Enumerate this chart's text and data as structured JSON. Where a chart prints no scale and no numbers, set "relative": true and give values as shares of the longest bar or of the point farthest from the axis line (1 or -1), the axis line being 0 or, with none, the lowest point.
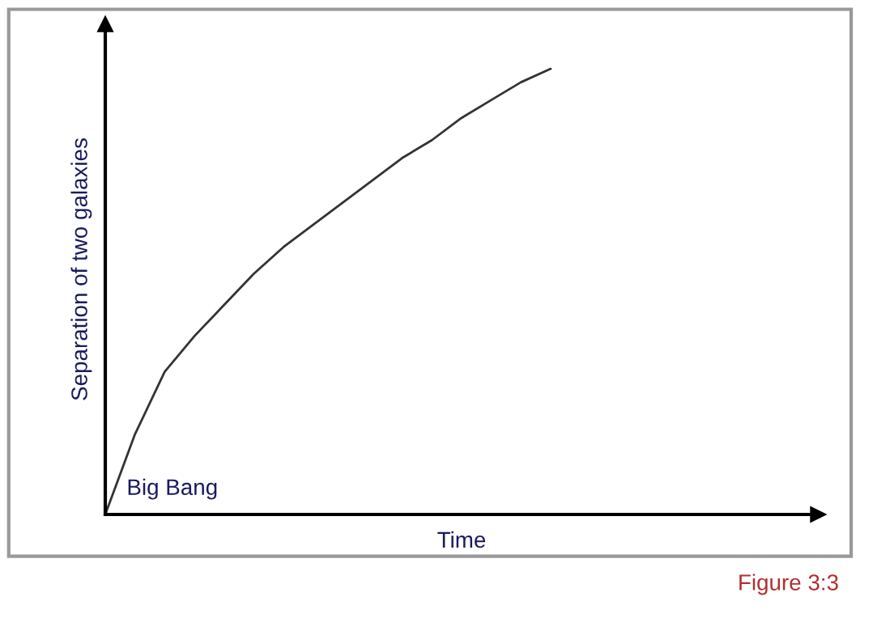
{
  "chart_data": {
    "type": "line",
    "relative": true,
    "xlabel": "Time",
    "ylabel": "Separation of two galaxies",
    "categories": [
      null,
      null,
      null,
      null,
      null,
      null,
      null,
      null,
      null,
      null,
      null,
      null,
      null,
      null,
      null,
      null,
      null,
      null,
      null,
      null,
      null,
      null,
      null,
      null,
      null
    ],
    "series": [
      {
        "color": "#333333",
        "values": [
          0,
          0.18,
          0.32,
          0.4,
          0.47,
          0.54,
          0.6,
          0.65,
          0.7,
          0.75,
          0.8,
          0.84,
          0.89,
          0.93,
          0.97,
          1.0,
          null,
          null,
          null,
          null,
          null,
          null,
          null,
          null,
          null
        ]
      }
    ],
    "annotations": [
      "Big Bang",
      "Figure 3:3"
    ],
    "grid": false,
    "legend": false
  }
}
